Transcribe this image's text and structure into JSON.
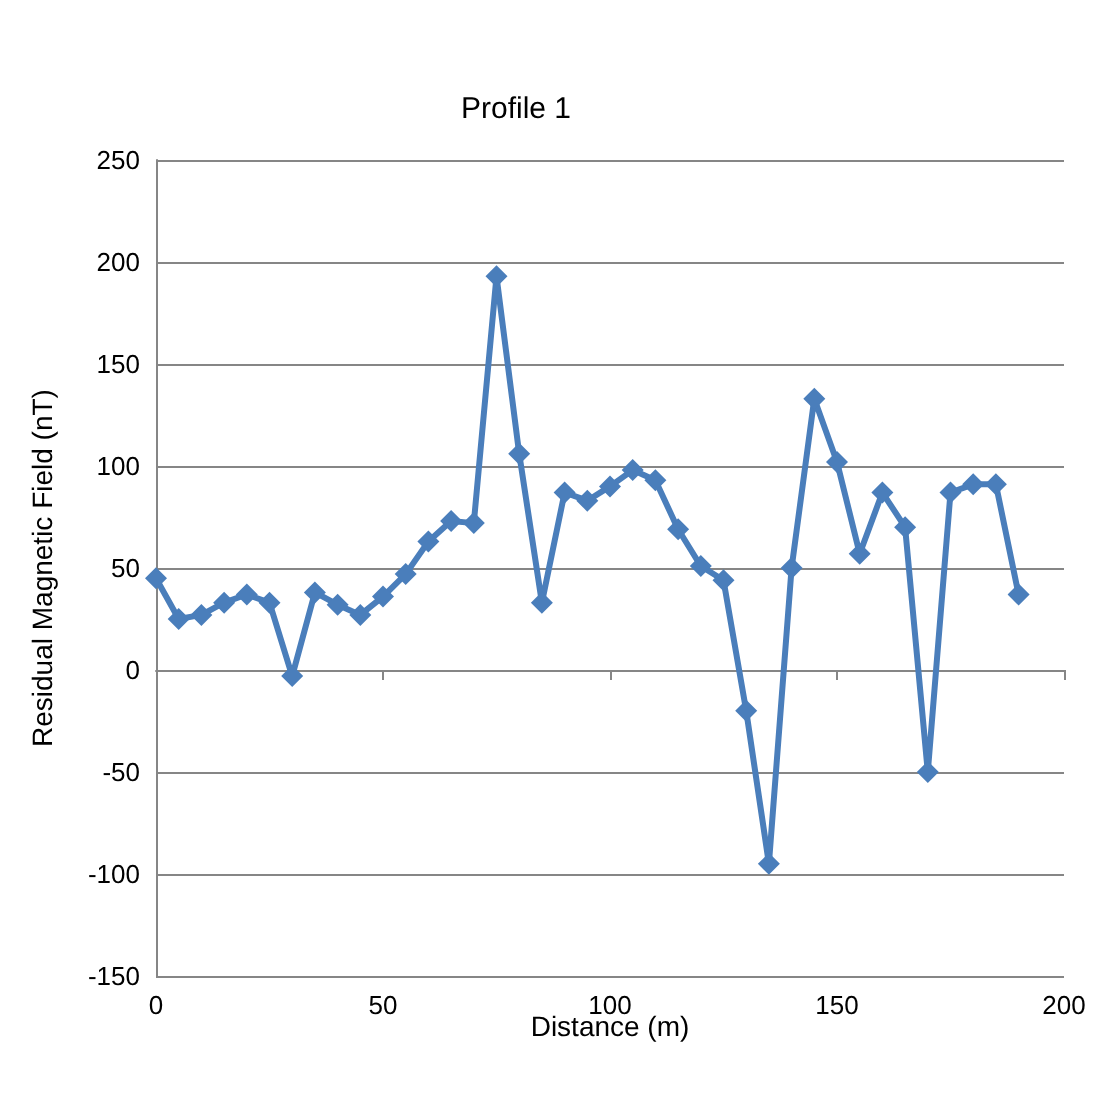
{
  "chart_data": {
    "type": "line",
    "title": "Profile 1",
    "xlabel": "Distance (m)",
    "ylabel": "Residual Magnetic Field (nT)",
    "x": [
      0,
      5,
      10,
      15,
      20,
      25,
      30,
      35,
      40,
      45,
      50,
      55,
      60,
      65,
      70,
      75,
      80,
      85,
      90,
      95,
      100,
      105,
      110,
      115,
      120,
      125,
      130,
      135,
      140,
      145,
      150,
      155,
      160,
      165,
      170,
      175,
      180,
      185,
      190
    ],
    "series": [
      {
        "color": "#4a7ebb",
        "values": [
          45,
          25,
          27,
          33,
          37,
          33,
          -3,
          38,
          32,
          27,
          36,
          47,
          63,
          73,
          72,
          193,
          106,
          33,
          87,
          83,
          90,
          98,
          93,
          69,
          51,
          44,
          -20,
          -95,
          50,
          133,
          102,
          57,
          87,
          70,
          -50,
          87,
          91,
          91,
          37
        ]
      }
    ],
    "xlim": [
      0,
      200
    ],
    "xticks": [
      0,
      50,
      100,
      150,
      200
    ],
    "ylim": [
      -150,
      250
    ],
    "yticks": [
      -150,
      -100,
      -50,
      0,
      50,
      100,
      150,
      200,
      250
    ],
    "grid": "y",
    "marker": "diamond",
    "line_style": "solid"
  }
}
